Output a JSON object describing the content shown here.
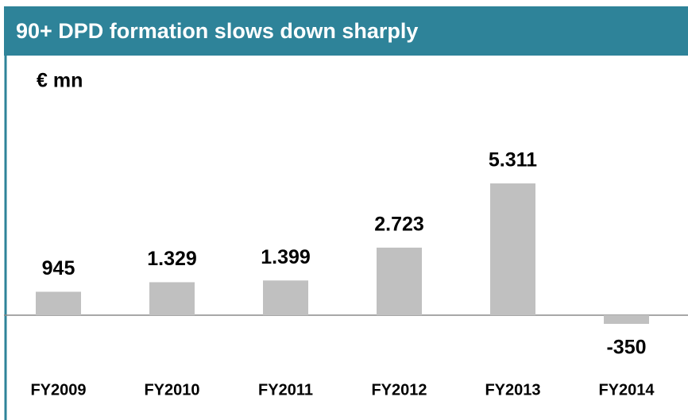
{
  "chart_data": {
    "type": "bar",
    "title": "90+ DPD formation slows down sharply",
    "unit_label": "€ mn",
    "categories": [
      "FY2009",
      "FY2010",
      "FY2011",
      "FY2012",
      "FY2013",
      "FY2014"
    ],
    "values": [
      945,
      1329,
      1399,
      2723,
      5311,
      -350
    ],
    "value_labels": [
      "945",
      "1.329",
      "1.399",
      "2.723",
      "5.311",
      "-350"
    ],
    "color": "#c0c0c0"
  }
}
